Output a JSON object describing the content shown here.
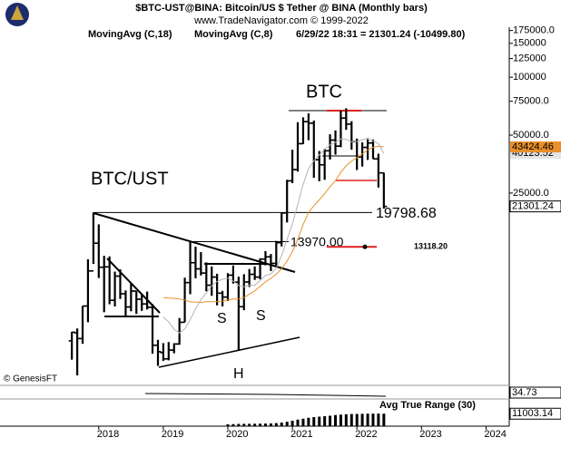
{
  "chart_data": {
    "type": "ohlc",
    "title": "$BTC-UST@BINA:  Bitcoin/US $ Tether @ BINA  (Monthly bars)",
    "subtitle": "www.TradeNavigator.com © 1999-2022",
    "status": "6/29/22 18:31 = 21301.24 (-10499.80)",
    "color": "#000000",
    "x": [
      2017.583,
      2017.667,
      2017.75,
      2017.833,
      2017.917,
      2018,
      2018.083,
      2018.167,
      2018.25,
      2018.333,
      2018.417,
      2018.5,
      2018.583,
      2018.667,
      2018.75,
      2018.833,
      2018.917,
      2019,
      2019.083,
      2019.167,
      2019.25,
      2019.333,
      2019.417,
      2019.5,
      2019.583,
      2019.667,
      2019.75,
      2019.833,
      2019.917,
      2020,
      2020.083,
      2020.167,
      2020.25,
      2020.333,
      2020.417,
      2020.5,
      2020.583,
      2020.667,
      2020.75,
      2020.833,
      2020.917,
      2021,
      2021.083,
      2021.167,
      2021.25,
      2021.333,
      2021.417,
      2021.5,
      2021.583,
      2021.667,
      2021.75,
      2021.833,
      2021.917,
      2022,
      2022.083,
      2022.167,
      2022.25,
      2022.333,
      2022.417
    ],
    "open": [
      4261,
      4689,
      4378,
      6463,
      9837,
      13715,
      10285,
      10325,
      6922,
      9246,
      7485,
      6391,
      7735,
      7011,
      6626,
      6369,
      4041,
      3701,
      3434,
      3814,
      4102,
      5321,
      8555,
      10855,
      10085,
      9592,
      8289,
      9140,
      7541,
      7195,
      9352,
      8600,
      6412,
      8620,
      9448,
      9138,
      11335,
      11649,
      10776,
      13791,
      19695,
      28923,
      33092,
      45134,
      58739,
      57697,
      37253,
      35045,
      41461,
      47100,
      43820,
      61300,
      57000,
      46216,
      38466,
      43160,
      45510,
      37630,
      31801
    ],
    "high": [
      4745,
      4939,
      6470,
      11300,
      19798.68,
      17176,
      11786,
      11710,
      9759,
      10020,
      7786,
      8491,
      7750,
      7410,
      7680,
      6615,
      4312,
      4143,
      4198,
      4140,
      5600,
      9074,
      13970,
      13147,
      12325,
      10905,
      10370,
      9513,
      7750,
      9578,
      10500,
      9188,
      9460,
      10067,
      10380,
      11444,
      12468,
      12050,
      14100,
      19863,
      29300,
      41950,
      58352,
      61844,
      64854,
      59500,
      41330,
      42448,
      50500,
      52920,
      67000,
      69000,
      59053,
      47990,
      45821,
      48189,
      47444,
      40023,
      31899
    ],
    "low": [
      3400,
      2817,
      4110,
      5325,
      10700,
      9035,
      6000,
      6600,
      6430,
      7032,
      5750,
      6070,
      5880,
      6100,
      6200,
      3652,
      3156,
      3349,
      3373,
      3670,
      4067,
      5320,
      7444,
      9010,
      9320,
      7710,
      7300,
      6515,
      6435,
      6871,
      8450,
      3782,
      6150,
      8117,
      8833,
      8893,
      10518,
      9825,
      10375,
      13195,
      17572,
      28130,
      32296,
      44950,
      47044,
      30000,
      28805,
      29278,
      37332,
      39600,
      43283,
      53256,
      42000,
      32917,
      34322,
      37155,
      37578,
      26700,
      20750
    ],
    "close": [
      4724,
      4379,
      6463,
      9838,
      13716,
      10285,
      10326,
      6923,
      9246,
      7485,
      6391,
      7730,
      7011,
      6626,
      6371,
      4041,
      3742,
      3434,
      3814,
      4102,
      5321,
      8555,
      10855,
      10085,
      9592,
      8289,
      9140,
      7541,
      7195,
      9352,
      8600,
      6410,
      8620,
      9448,
      9138,
      11335,
      11649,
      10776,
      13791,
      19695,
      28923,
      33092,
      45135,
      58740,
      57694,
      37253,
      35045,
      41461,
      47100,
      43824,
      61318,
      57005,
      46216,
      38466,
      43160,
      45510,
      37630,
      31801,
      21301.24
    ],
    "series": [
      {
        "name": "MovingAvg (C,18)",
        "color": "#e8902a",
        "values": [
          null,
          null,
          null,
          null,
          null,
          null,
          null,
          null,
          null,
          null,
          null,
          null,
          null,
          null,
          null,
          null,
          null,
          7152,
          7101,
          7086,
          7022,
          6951,
          6792,
          6781,
          6740,
          6816,
          6810,
          6813,
          6858,
          6948,
          7036,
          7024,
          7149,
          7450,
          7750,
          8188,
          8624,
          8995,
          9465,
          10084,
          11088,
          12366,
          14341,
          17143,
          19841,
          21491,
          23039,
          24823,
          26961,
          29040,
          31968,
          34610,
          36670,
          38177,
          39927,
          41857,
          43182,
          43854,
          43424.46
        ]
      },
      {
        "name": "MovingAvg (C,8)",
        "color": "#b4b4b4",
        "values": [
          null,
          null,
          null,
          null,
          null,
          null,
          null,
          null,
          null,
          null,
          null,
          null,
          null,
          null,
          null,
          null,
          null,
          5668,
          5346,
          4893,
          4681,
          4923,
          5483,
          6239,
          6970,
          7577,
          8242,
          8672,
          8907,
          9006,
          8724,
          8265,
          8143,
          8288,
          8288,
          8762,
          9319,
          9497,
          10146,
          11807,
          14344,
          17300,
          21800,
          27725,
          33481,
          36790,
          39447,
          42168,
          44440,
          45782,
          47804,
          47588,
          46153,
          46304,
          47319,
          47825,
          46641,
          45138,
          40123.52
        ]
      }
    ],
    "log_scale": true,
    "xlim": [
      2016.47,
      2024.36
    ],
    "xticks": [
      2018,
      2019,
      2020,
      2021,
      2022,
      2023,
      2024
    ],
    "ylim": [
      2500,
      182000
    ],
    "yticks": [
      {
        "value": 175000,
        "label": "175000.0"
      },
      150000,
      125000,
      100000,
      {
        "value": 75000,
        "label": "75000.0"
      },
      {
        "value": 50000,
        "label": "50000.0"
      },
      {
        "value": 25000,
        "label": "25000.0"
      }
    ],
    "levels": {
      "values": [
        19798.68,
        13970,
        13118.2
      ],
      "value_labels": [
        "19798.68",
        "13970.00",
        "13118.20"
      ],
      "colors": [
        "#000000",
        "#000000",
        "#e02020"
      ]
    },
    "annotations": [
      "BTC",
      "BTC/UST",
      "S",
      "S",
      "H",
      "© GenesisFT"
    ],
    "oscillator": {
      "last_value": 34.73
    },
    "atr": {
      "name": "Avg True Range (30)",
      "color": "#000000",
      "ylim": [
        0,
        20000
      ],
      "values": [
        null,
        null,
        null,
        null,
        null,
        null,
        null,
        null,
        null,
        null,
        null,
        null,
        null,
        null,
        null,
        null,
        null,
        null,
        null,
        null,
        null,
        null,
        null,
        null,
        null,
        null,
        null,
        null,
        null,
        1600,
        1800,
        2000,
        2050,
        2100,
        2150,
        2200,
        2300,
        2400,
        2700,
        3200,
        3900,
        4800,
        5800,
        6600,
        7400,
        8000,
        8400,
        8800,
        9200,
        9800,
        10200,
        10500,
        10700,
        10800,
        10900,
        11000,
        11050,
        11100,
        11003.14
      ]
    }
  }
}
